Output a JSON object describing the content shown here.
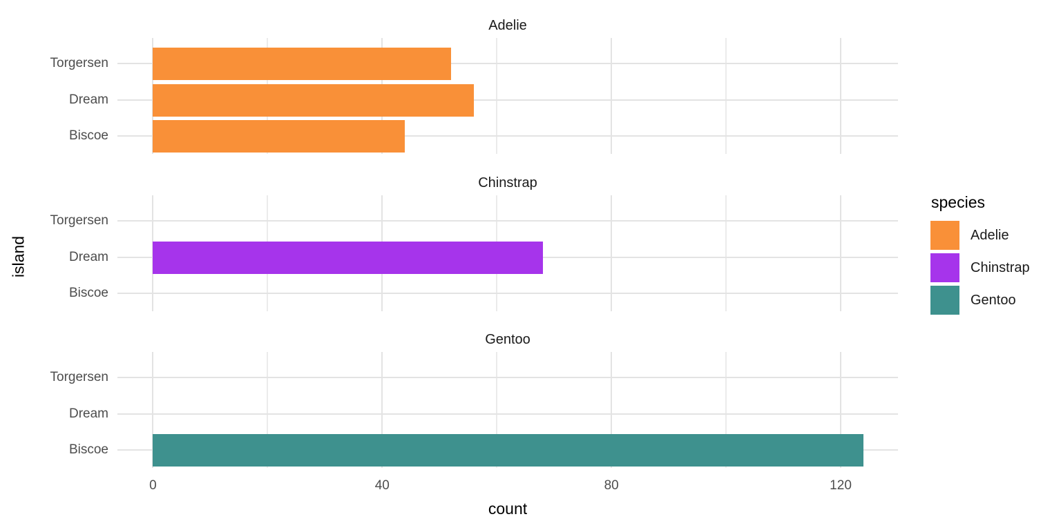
{
  "chart_data": {
    "type": "bar",
    "orientation": "horizontal",
    "facet_by": "species",
    "title": "",
    "xlabel": "count",
    "ylabel": "island",
    "categories": [
      "Torgersen",
      "Dream",
      "Biscoe"
    ],
    "x_major_ticks": [
      0,
      40,
      80,
      120
    ],
    "x_minor_ticks": [
      20,
      60,
      100
    ],
    "xlim": [
      -6.2,
      130
    ],
    "grid": true,
    "facets": [
      {
        "label": "Adelie",
        "color": "#F99038",
        "values": [
          52,
          56,
          44
        ]
      },
      {
        "label": "Chinstrap",
        "color": "#A634EB",
        "values": [
          null,
          68,
          null
        ]
      },
      {
        "label": "Gentoo",
        "color": "#3E918E",
        "values": [
          null,
          null,
          124
        ]
      }
    ],
    "legend": {
      "title": "species",
      "position": "right",
      "entries": [
        {
          "label": "Adelie",
          "color": "#F99038"
        },
        {
          "label": "Chinstrap",
          "color": "#A634EB"
        },
        {
          "label": "Gentoo",
          "color": "#3E918E"
        }
      ]
    }
  }
}
